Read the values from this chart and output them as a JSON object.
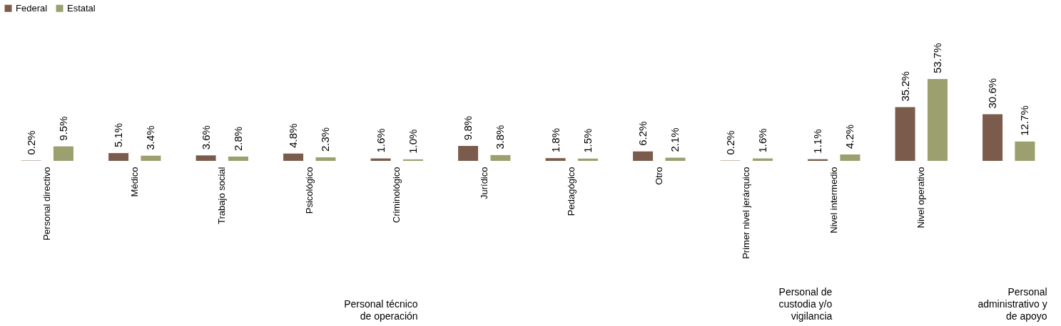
{
  "chart_data": {
    "type": "bar",
    "categories": [
      "Personal directivo",
      "Médico",
      "Trabajo social",
      "Psicológico",
      "Criminológico",
      "Jurídico",
      "Pedagógico",
      "Otro",
      "Primer nivel jerárquico",
      "Nivel intermedio",
      "Nivel operativo",
      null
    ],
    "series": [
      {
        "name": "Federal",
        "color": "#7b5c4c",
        "values": [
          0.2,
          5.1,
          3.6,
          4.8,
          1.6,
          9.8,
          1.8,
          6.2,
          0.2,
          1.1,
          35.2,
          30.6
        ],
        "value_labels": [
          "0.2%",
          "5.1%",
          "3.6%",
          "4.8%",
          "1.6%",
          "9.8%",
          "1.8%",
          "6.2%",
          "0.2%",
          "1.1%",
          "35.2%",
          "30.6%"
        ]
      },
      {
        "name": "Estatal",
        "color": "#9ba06e",
        "values": [
          9.5,
          3.4,
          2.8,
          2.3,
          1.0,
          3.8,
          1.5,
          2.1,
          1.6,
          4.2,
          53.7,
          12.7
        ],
        "value_labels": [
          "9.5%",
          "3.4%",
          "2.8%",
          "2.3%",
          "1.0%",
          "3.8%",
          "1.5%",
          "2.1%",
          "1.6%",
          "4.2%",
          "53.7%",
          "12.7%"
        ]
      }
    ],
    "legend": "top left",
    "annotations": [
      "Personal técnico de operación",
      "Personal de custodia y/o vigilancia",
      "Personal administrativo y de apoyo"
    ]
  }
}
